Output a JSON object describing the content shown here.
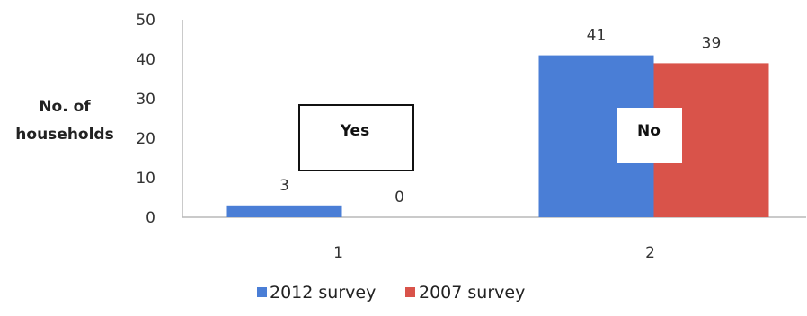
{
  "chart_data": {
    "type": "bar",
    "categories": [
      "1",
      "2"
    ],
    "series": [
      {
        "name": "2012 survey",
        "values": [
          3,
          41
        ],
        "color": "#4a7ed6"
      },
      {
        "name": "2007 survey",
        "values": [
          0,
          39
        ],
        "color": "#d9534a"
      }
    ],
    "data_labels": [
      [
        "3",
        "41"
      ],
      [
        "0",
        "39"
      ]
    ],
    "ylabel_lines": [
      "No. of",
      "households"
    ],
    "yticks": [
      0,
      10,
      20,
      30,
      40,
      50
    ],
    "ylim": [
      0,
      50
    ],
    "grid": false,
    "legend": "bottom",
    "annotations": [
      {
        "text": "Yes",
        "category": "1",
        "boxed": true
      },
      {
        "text": "No",
        "category": "2",
        "boxed": false
      }
    ]
  }
}
